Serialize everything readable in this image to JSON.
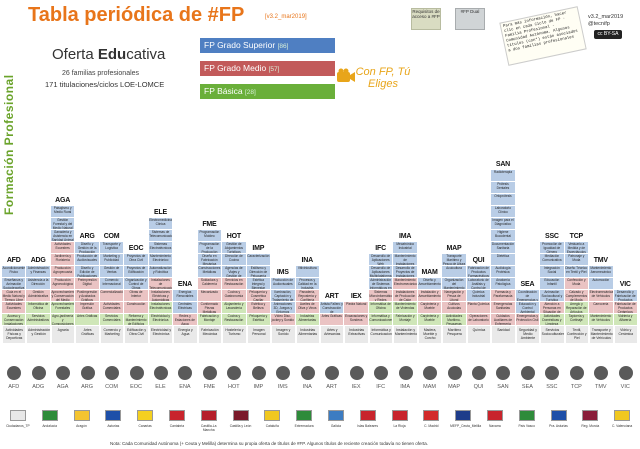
{
  "title": "Tabla periódica de #FP",
  "version": "[v3.2_mar2019]",
  "side_title": "Formación Profesional",
  "offer": {
    "title_pre": "Oferta ",
    "title_bold": "Edu",
    "title_post": "cativa",
    "line1": "26 familias profesionales",
    "line2": "171 titulaciones/ciclos LOE-LOMCE"
  },
  "legend": [
    {
      "label": "FP Grado Superior",
      "count": "[86]",
      "color": "#4f7fc2"
    },
    {
      "label": "FP Grado Medio",
      "count": "[57]",
      "color": "#c25a5a"
    },
    {
      "label": "FP Básica",
      "count": "[28]",
      "color": "#6aaf3a"
    }
  ],
  "cta": "Con FP, Tú Eliges",
  "stickies": [
    {
      "text": "Requisitos de acceso a #FP"
    },
    {
      "text": "#FP Dual"
    }
  ],
  "note": "Para más información, hacer clic en cada Ciclo de FP · Familia Profesional · Comunidad Autónoma. Algunos títulos (con*) están asociados a dos familias profesionales",
  "handle": "v3.2_mar2019\n@tecnifp",
  "license": "cc BY-SA",
  "colors": {
    "title": "#e8751a",
    "side": "#6aa32a",
    "gs": "#b9cde6",
    "gm": "#eac3c3",
    "fb": "#cfe6b8"
  },
  "families": [
    {
      "code": "AFD",
      "gs": [
        "Enseñanza y Animación Sociodeportiva",
        "Acondicionamiento Físico"
      ],
      "gm": [
        "Actividades Ecuestres",
        "Guía en el Medio Natural y Tiempo Libre"
      ],
      "fb": [
        "Acceso y Conservación Instalaciones Deportivas"
      ],
      "name": "Actividades Físicas y Deportivas"
    },
    {
      "code": "ADG",
      "gs": [
        "Asistencia a la Dirección",
        "Administración y Finanzas"
      ],
      "gm": [
        "Gestión Administrativa"
      ],
      "fb": [
        "Servicios Administrativos",
        "Informática de Oficina"
      ],
      "name": "Administración y Gestión"
    },
    {
      "code": "AGA",
      "gs": [
        "Ganadería y Asistencia en Sanidad Animal",
        "Gestión Forestal y del Medio Natural",
        "Paisajismo y Medio Rural"
      ],
      "gm": [
        "Aprovechamiento y Conservación del Medio Natural",
        "Producción Agroecológica",
        "Producción Agropecuaria",
        "Jardinería y Floristería",
        "Actividades Ecuestres"
      ],
      "fb": [
        "Agro-jardinería y Composiciones Florales",
        "Aprovechamientos Forestales"
      ],
      "name": "Agraria"
    },
    {
      "code": "ARG",
      "gs": [
        "Diseño y Edición de Publicaciones",
        "Producción de Audiovisuales",
        "Diseño y Gestión de la Producción Gráfica"
      ],
      "gm": [
        "Impresión Gráfica",
        "Postimpresión y Acabados Gráficos",
        "Preimpresión Digital"
      ],
      "fb": [
        "Artes Gráficas"
      ],
      "name": "Artes Gráficas"
    },
    {
      "code": "COM",
      "gs": [
        "Comercio Internacional",
        "Gestión de Ventas",
        "Marketing y Publicidad",
        "Transporte y Logística"
      ],
      "gm": [
        "Actividades Comerciales",
        "Comercialización"
      ],
      "fb": [
        "Servicios Comerciales"
      ],
      "name": "Comercio y Marketing"
    },
    {
      "code": "EOC",
      "gs": [
        "Organización y Control de Obras",
        "Proyectos de Edificación",
        "Proyectos de Obra Civil"
      ],
      "gm": [
        "Construcción",
        "Obras de Interior"
      ],
      "fb": [
        "Reforma y Mantenimiento de Edificios"
      ],
      "name": "Edificación y Obra Civil"
    },
    {
      "code": "ELE",
      "gs": [
        "Automatización y Robótica",
        "Mantenimiento Electrónico",
        "Sistemas Electrotécnicos",
        "Sistemas de Telecomunicaciones",
        "Electromedicina Clínica"
      ],
      "gm": [
        "Instalaciones Eléctricas y Automáticas",
        "Instalaciones de Telecomunicaciones"
      ],
      "fb": [
        "Electricidad y Electrónica",
        "Instalaciones Electrotécnicas"
      ],
      "name": "Electricidad y Electrónica"
    },
    {
      "code": "ENA",
      "gs": [
        "Centrales Eléctricas",
        "Energías Renovables"
      ],
      "gm": [
        "Redes y Estaciones de Agua"
      ],
      "fb": [],
      "name": "Energía y Agua"
    },
    {
      "code": "FME",
      "gs": [
        "Construcciones Metálicas",
        "Diseño en Fabricación Mecánica",
        "Programación de la Producción",
        "Programación Moldeo"
      ],
      "gm": [
        "Conformado Piezas Metálicas",
        "Mecanizado",
        "Soldadura y Calderería"
      ],
      "fb": [
        "Fabricación y Montaje"
      ],
      "name": "Fabricación Mecánica"
    },
    {
      "code": "HOT",
      "gs": [
        "Agencias de Viajes y Gestión de Eventos",
        "Dirección de Cocina",
        "Gestión de Alojamientos Turísticos"
      ],
      "gm": [
        "Cocina y Gastronomía",
        "Servicios en Restauración"
      ],
      "fb": [
        "Cocina y Restauración",
        "Alojamiento y Lavandería"
      ],
      "name": "Hostelería y Turismo"
    },
    {
      "code": "IMP",
      "gs": [
        "Estética Integral y Bienestar",
        "Estilismo y Dirección de Peluquería",
        "Caracterización"
      ],
      "gm": [
        "Estética y Belleza",
        "Peluquería y Cosmética Capilar"
      ],
      "fb": [
        "Peluquería y Estética"
      ],
      "name": "Imagen Personal"
    },
    {
      "code": "IMS",
      "gs": [
        "Animaciones 3D, Juegos y Entornos Interactivos",
        "Iluminación, Captación y Tratamiento de Imagen",
        "Producción de Audiovisuales"
      ],
      "gm": [
        "Vídeo Disc-jockey y Sonido"
      ],
      "fb": [],
      "name": "Imagen y Sonido"
    },
    {
      "code": "INA",
      "gs": [
        "Procesos y Calidad en la Industria Alimentaria",
        "Vitivinicultura"
      ],
      "gm": [
        "Aceites de Oliva y Vinos",
        "Panadería, Repostería y Confitería"
      ],
      "fb": [
        "Industrias Alimentarias"
      ],
      "name": "Industrias Alimentarias"
    },
    {
      "code": "ART",
      "gs": [
        "Artista Fallero y Construcción de Escenografías"
      ],
      "gm": [
        "Artes Gráficas"
      ],
      "fb": [],
      "name": "Artes y Artesanías"
    },
    {
      "code": "IEX",
      "gs": [],
      "gm": [
        "Excavaciones y Sondeos",
        "Piedra Natural"
      ],
      "fb": [],
      "name": "Industrias Extractivas"
    },
    {
      "code": "IFC",
      "gs": [
        "Administración de Sistemas Informáticos en Red",
        "Desarrollo de Aplicaciones Multiplataforma",
        "Desarrollo de Aplicaciones Web"
      ],
      "gm": [
        "Sistemas Microinformáticos y Redes"
      ],
      "fb": [
        "Informática y Comunicaciones",
        "Informática de Oficina"
      ],
      "name": "Informática y Comunicaciones"
    },
    {
      "code": "IMA",
      "gs": [
        "Desarrollo de Proyectos de Instalaciones Térmicas",
        "Mantenimiento de Instalaciones Térmicas",
        "Mecatrónica Industrial"
      ],
      "gm": [
        "Instalaciones de Producción de Calor",
        "Mantenimiento Electromecánico"
      ],
      "fb": [
        "Fabricación y Montaje",
        "Mantenimiento de Viviendas"
      ],
      "name": "Instalación y Mantenimiento"
    },
    {
      "code": "MAM",
      "gs": [
        "Diseño y Amueblamiento"
      ],
      "gm": [
        "Carpintería y Mueble",
        "Instalación y Amueblamiento"
      ],
      "fb": [
        "Carpintería y Mueble"
      ],
      "name": "Madera, Mueble y Corcho"
    },
    {
      "code": "MAP",
      "gs": [
        "Organización del Mantenimiento de Maquinaria de Buques",
        "Acuicultura",
        "Transporte Marítimo y Pesca de Altura"
      ],
      "gm": [
        "Cultivos Acuícolas",
        "Navegación y Pesca de Litoral"
      ],
      "fb": [
        "Actividades Marítimo-Pesqueras"
      ],
      "name": "Marítimo Pesquera"
    },
    {
      "code": "QUI",
      "gs": [
        "Química Industrial",
        "Laboratorio de Análisis y Control de Calidad",
        "Fabricación de Productos Farmacéuticos"
      ],
      "gm": [
        "Operaciones de Laboratorio",
        "Planta Química"
      ],
      "fb": [],
      "name": "Química"
    },
    {
      "code": "SAN",
      "gs": [
        "Anatomía Patológica",
        "Audiología Protésica",
        "Dietética",
        "Documentación Sanitaria",
        "Higiene Bucodental",
        "Imagen para el Diagnóstico",
        "Laboratorio Clínico",
        "Ortoprótesis",
        "Prótesis Dentales",
        "Radioterapia"
      ],
      "gm": [
        "Cuidados Auxiliares de Enfermería",
        "Emergencias Sanitarias",
        "Farmacia y Parafarmacia"
      ],
      "fb": [],
      "name": "Sanidad"
    },
    {
      "code": "SEA",
      "gs": [
        "Educación y Control Ambiental",
        "Coordinación de Emergencias y Protección Civil"
      ],
      "gm": [
        "Emergencias y Protección Civil"
      ],
      "fb": [],
      "name": "Seguridad y Medio Ambiente"
    },
    {
      "code": "SSC",
      "gs": [
        "Animación Sociocultural y Turística",
        "Educación Infantil",
        "Integración Social",
        "Mediación Comunicativa",
        "Promoción de Igualdad de Género"
      ],
      "gm": [
        "Atención a Personas en Situación de Dependencia"
      ],
      "fb": [
        "Actividades Domésticas y Limpieza"
      ],
      "name": "Servicios Socioculturales"
    },
    {
      "code": "TCP",
      "gs": [
        "Diseño Técnico en Textil y Piel",
        "Patronaje y Moda",
        "Vestuario a Medida y de Espectáculos"
      ],
      "gm": [
        "Calzado y Complementos de Moda",
        "Confección y Moda"
      ],
      "fb": [
        "Tapicería y Cortinaje",
        "Arreglo y Reparación de Artículos"
      ],
      "name": "Textil, Confección y Piel"
    },
    {
      "code": "TMV",
      "gs": [
        "Automoción",
        "Mantenimiento Aeromecánico"
      ],
      "gm": [
        "Carrocería",
        "Electromecánica de Vehículos"
      ],
      "fb": [
        "Mantenimiento de Vehículos"
      ],
      "name": "Transporte y Mantenimiento de Vehículos"
    },
    {
      "code": "VIC",
      "gs": [
        "Desarrollo y Fabricación de Productos Cerámicos"
      ],
      "gm": [
        "Fabricación de Productos Cerámicos"
      ],
      "fb": [
        "Vidriería y Alfarería"
      ],
      "name": "Vidrio y Cerámica"
    }
  ],
  "regions": [
    "Ciudadanos_TP",
    "Andalucía",
    "Aragón",
    "Asturias",
    "Canarias",
    "Cantabria",
    "Castilla-La Mancha",
    "Castilla y León",
    "Cataluña",
    "Extremadura",
    "Galicia",
    "Islas Baleares",
    "La Rioja",
    "C. Madrid",
    "MEFP_Ceuta_Melilla",
    "Navarra",
    "País Vasco",
    "Pra. Asturias",
    "Reg. Murcia",
    "C. Valenciana"
  ],
  "footnote": "Nota: Cada Comunidad Autónoma (+ Ceuta y Melilla) determina su propia oferta de títulos de #FP. Algunos títulos de reciente creación todavía no tienen oferta."
}
